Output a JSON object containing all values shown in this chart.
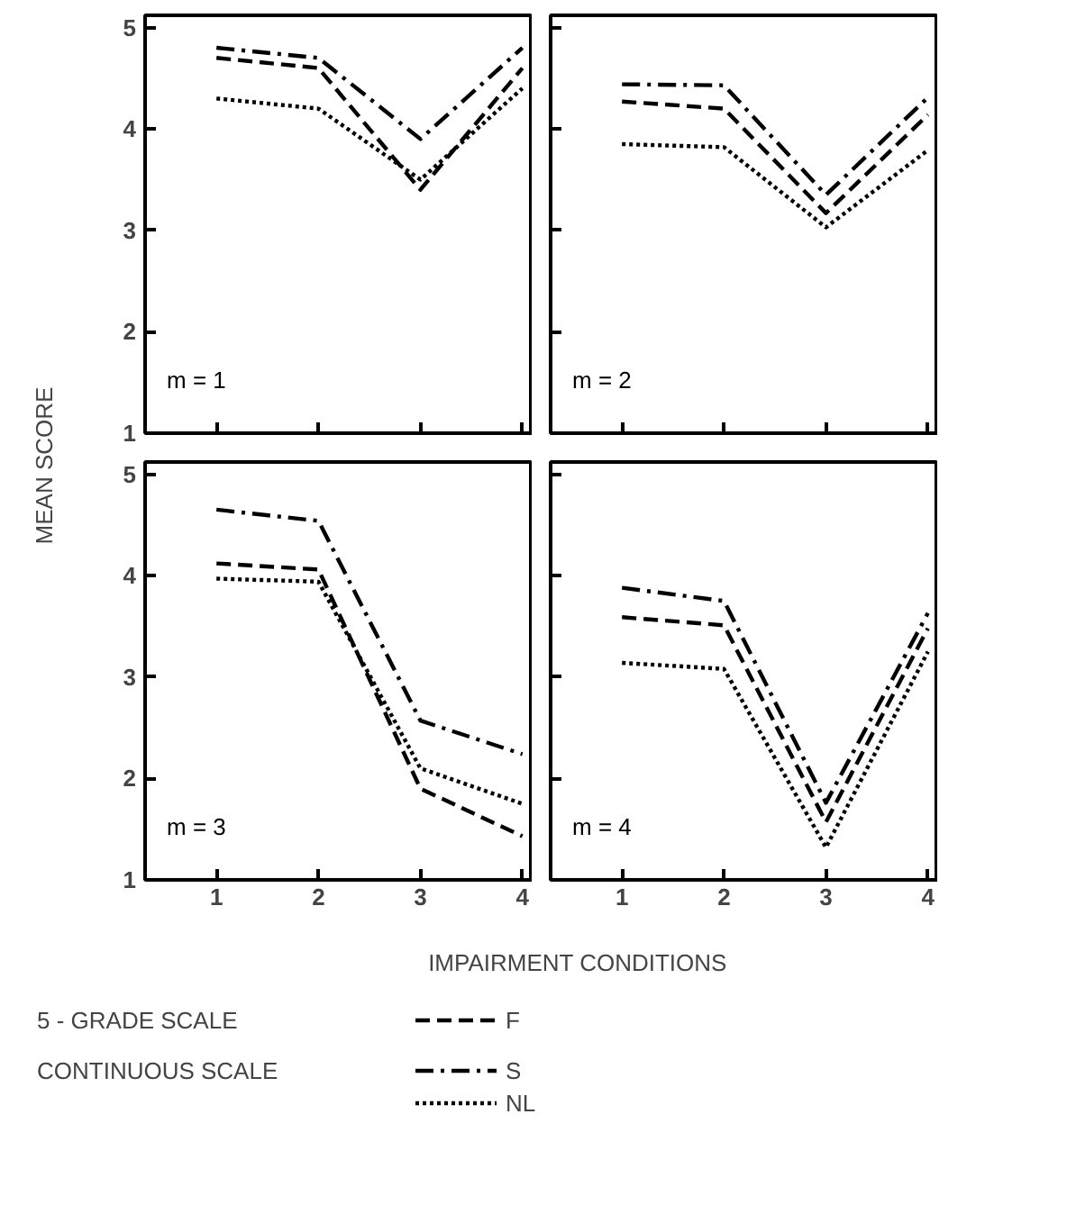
{
  "chart_data": [
    {
      "type": "line",
      "x": [
        1,
        2,
        3,
        4
      ],
      "xlim": [
        0.3,
        4.1
      ],
      "xticks": [
        1,
        2,
        3,
        4
      ],
      "ylim": [
        1,
        5.12
      ],
      "yticks": [
        1,
        2,
        3,
        4,
        5
      ],
      "tick_labels": "y",
      "xlabel": "IMPAIRMENT CONDITIONS",
      "ylabel": "MEAN SCORE",
      "legend": "bottom",
      "grid": false,
      "annotations": [
        "m = 1",
        "5 - GRADE SCALE",
        "CONTINUOUS SCALE"
      ],
      "series": [
        {
          "name": "F",
          "color": "#000000",
          "line_style": "dashed",
          "values": [
            4.7,
            4.6,
            3.4,
            4.6
          ]
        },
        {
          "name": "S",
          "color": "#000000",
          "line_style": "dashdot",
          "values": [
            4.8,
            4.7,
            3.9,
            4.8
          ]
        },
        {
          "name": "NL",
          "color": "#000000",
          "line_style": "dotted",
          "values": [
            4.3,
            4.2,
            3.5,
            4.4
          ]
        }
      ]
    },
    {
      "type": "line",
      "x": [
        1,
        2,
        3,
        4
      ],
      "xlim": [
        0.3,
        4.1
      ],
      "xticks": [
        1,
        2,
        3,
        4
      ],
      "ylim": [
        1,
        5.12
      ],
      "yticks": [
        1,
        2,
        3,
        4,
        5
      ],
      "tick_labels": false,
      "grid": false,
      "annotations": [
        "m = 2"
      ],
      "series": [
        {
          "color": "#000000",
          "line_style": "dashed",
          "values": [
            4.27,
            4.2,
            3.17,
            4.14
          ]
        },
        {
          "color": "#000000",
          "line_style": "dashdot",
          "values": [
            4.44,
            4.43,
            3.35,
            4.31
          ]
        },
        {
          "color": "#000000",
          "line_style": "dotted",
          "values": [
            3.85,
            3.82,
            3.03,
            3.79
          ]
        }
      ]
    },
    {
      "type": "line",
      "x": [
        1,
        2,
        3,
        4
      ],
      "xlim": [
        0.3,
        4.1
      ],
      "xticks": [
        1,
        2,
        3,
        4
      ],
      "ylim": [
        1,
        5.12
      ],
      "yticks": [
        1,
        2,
        3,
        4,
        5
      ],
      "grid": false,
      "annotations": [
        "m = 3"
      ],
      "series": [
        {
          "color": "#000000",
          "line_style": "dashed",
          "values": [
            4.12,
            4.06,
            1.9,
            1.43
          ]
        },
        {
          "color": "#000000",
          "line_style": "dashdot",
          "values": [
            4.65,
            4.54,
            2.57,
            2.24
          ]
        },
        {
          "color": "#000000",
          "line_style": "dotted",
          "values": [
            3.97,
            3.94,
            2.1,
            1.75
          ]
        }
      ]
    },
    {
      "type": "line",
      "x": [
        1,
        2,
        3,
        4
      ],
      "xlim": [
        0.3,
        4.1
      ],
      "xticks": [
        1,
        2,
        3,
        4
      ],
      "ylim": [
        1,
        5.12
      ],
      "yticks": [
        1,
        2,
        3,
        4,
        5
      ],
      "tick_labels": "x",
      "grid": false,
      "annotations": [
        "m = 4"
      ],
      "series": [
        {
          "color": "#000000",
          "line_style": "dashed",
          "values": [
            3.59,
            3.51,
            1.57,
            3.48
          ]
        },
        {
          "color": "#000000",
          "line_style": "dashdot",
          "values": [
            3.88,
            3.75,
            1.76,
            3.63
          ]
        },
        {
          "color": "#000000",
          "line_style": "dotted",
          "values": [
            3.14,
            3.08,
            1.32,
            3.25
          ]
        }
      ]
    }
  ]
}
